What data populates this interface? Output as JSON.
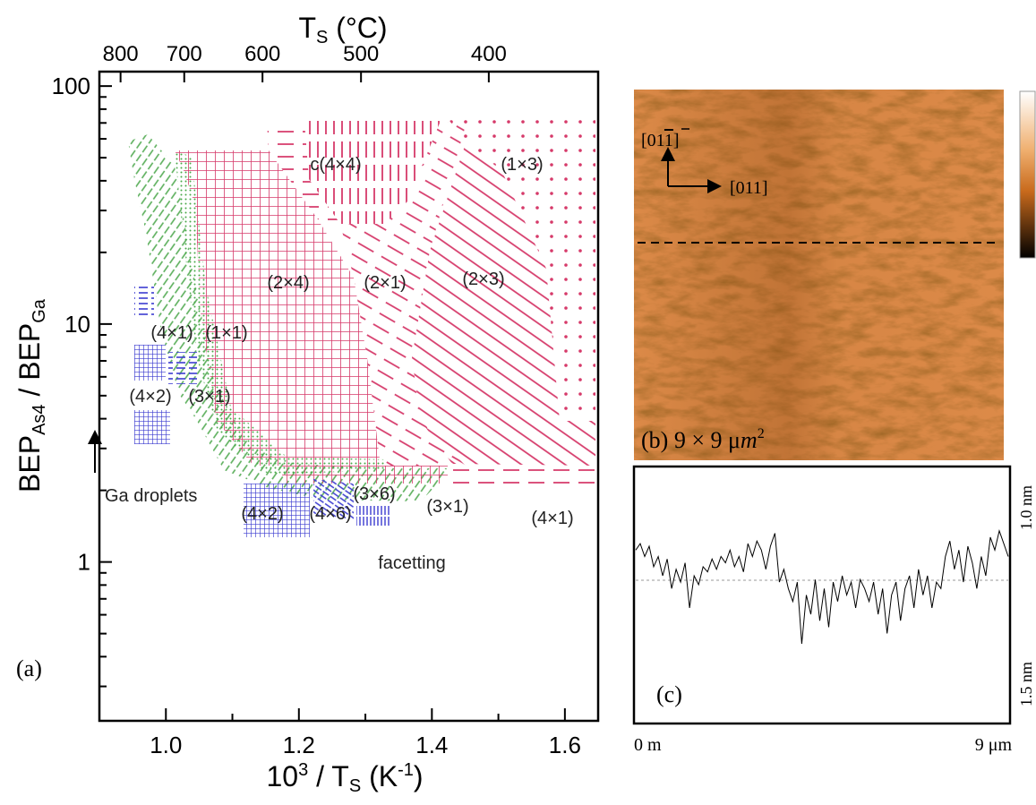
{
  "panel_a": {
    "label": "(a)",
    "top_title": {
      "main": "T",
      "sub": "S",
      "unit": " (°C)"
    },
    "x_title": {
      "base": "10",
      "sup": "3",
      "mid": " / T",
      "sub": "S",
      "unit": " (K",
      "sup2": "-1",
      "end": ")"
    },
    "y_title": {
      "a": "BEP",
      "sub1": "As4",
      "b": " / BEP",
      "sub2": "Ga"
    },
    "xlim": [
      0.9,
      1.65
    ],
    "xticks": [
      {
        "value": 1,
        "label": "1.0"
      },
      {
        "value": 1.2,
        "label": "1.2"
      },
      {
        "value": 1.4,
        "label": "1.4"
      },
      {
        "value": 1.6,
        "label": "1.6"
      }
    ],
    "xminorticks": [
      1.1,
      1.3,
      1.5
    ],
    "ylim": [
      0.215,
      115
    ],
    "log_y": true,
    "yticks": [
      1,
      10,
      100
    ],
    "yminorticks": [
      0.3,
      0.4,
      0.5,
      0.6,
      0.7,
      0.8,
      0.9,
      2,
      3,
      4,
      5,
      6,
      7,
      8,
      9,
      20,
      30,
      40,
      50,
      60,
      70,
      80,
      90
    ],
    "top_ticks": [
      800,
      700,
      600,
      500,
      400
    ],
    "regions": [
      "c(4×4)",
      "(1×3)",
      "(2×4)",
      "(2×1)",
      "(2×3)",
      "(4×1)",
      "(1×1)",
      "(4×2)",
      "(3×1)",
      "Ga droplets",
      "(4×2)",
      "(4×6)",
      "(3×6)",
      "(3×1)",
      "(4×1)",
      "facetting"
    ]
  },
  "panel_b": {
    "dir_vertical": {
      "start": "[01",
      "bar": "1",
      "end": "]"
    },
    "dir_horizontal": "[011]",
    "label": "(b) 9 × 9 μ",
    "label_unit": "m",
    "label_sup": "2"
  },
  "panel_c": {
    "label": "(c)",
    "top_label": "1.0 nm",
    "bottom_label": "1.5 nm",
    "x_start": "0 m",
    "x_end": "9 μm",
    "ylim": [
      -1,
      1
    ],
    "profile": [
      0.35,
      0.4,
      0.3,
      0.38,
      0.22,
      0.3,
      0.15,
      0.28,
      0.05,
      0.2,
      0.1,
      0.25,
      -0.1,
      0.15,
      0.08,
      0.22,
      0.18,
      0.28,
      0.2,
      0.3,
      0.25,
      0.35,
      0.22,
      0.3,
      0.18,
      0.4,
      0.3,
      0.42,
      0.35,
      0.2,
      0.38,
      0.48,
      0.1,
      0.2,
      0.05,
      -0.05,
      0.1,
      -0.38,
      0.0,
      -0.15,
      0.12,
      -0.2,
      0.05,
      -0.25,
      0.1,
      -0.05,
      0.15,
      0.0,
      0.1,
      -0.1,
      0.12,
      0.05,
      -0.05,
      0.1,
      -0.15,
      0.05,
      -0.3,
      0.0,
      0.1,
      -0.2,
      0.05,
      0.15,
      -0.1,
      0.2,
      0.0,
      0.15,
      -0.1,
      0.1,
      0.05,
      0.3,
      0.42,
      0.2,
      0.35,
      0.1,
      0.38,
      0.25,
      0.05,
      0.3,
      0.15,
      0.45,
      0.35,
      0.5,
      0.4,
      0.3
    ]
  }
}
